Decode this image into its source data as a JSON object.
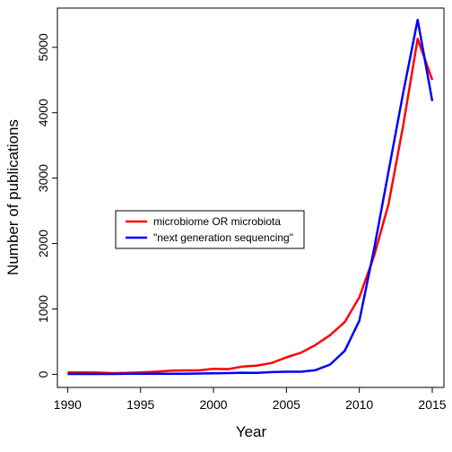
{
  "chart_data": {
    "type": "line",
    "title": "",
    "xlabel": "Year",
    "ylabel": "Number of publications",
    "xlim": [
      1989.3,
      2015.8
    ],
    "ylim": [
      -200,
      5600
    ],
    "x_ticks": [
      1990,
      1995,
      2000,
      2005,
      2010,
      2015
    ],
    "y_ticks": [
      0,
      1000,
      2000,
      3000,
      4000,
      5000
    ],
    "x": [
      1990,
      1991,
      1992,
      1993,
      1994,
      1995,
      1996,
      1997,
      1998,
      1999,
      2000,
      2001,
      2002,
      2003,
      2004,
      2005,
      2006,
      2007,
      2008,
      2009,
      2010,
      2011,
      2012,
      2013,
      2014,
      2015
    ],
    "series": [
      {
        "name": "microbiome OR microbiota",
        "color": "#ff0000",
        "values": [
          30,
          30,
          28,
          20,
          22,
          30,
          40,
          55,
          60,
          60,
          85,
          80,
          120,
          135,
          175,
          260,
          330,
          450,
          600,
          800,
          1180,
          1800,
          2600,
          3800,
          5130,
          4500
        ]
      },
      {
        "name": "\"next generation sequencing\"",
        "color": "#0000ff",
        "values": [
          5,
          5,
          5,
          5,
          8,
          8,
          10,
          10,
          10,
          12,
          15,
          20,
          25,
          22,
          35,
          40,
          40,
          65,
          150,
          360,
          820,
          1900,
          3100,
          4300,
          5420,
          4180
        ]
      }
    ],
    "grid": false,
    "legend_position": "center-left"
  }
}
